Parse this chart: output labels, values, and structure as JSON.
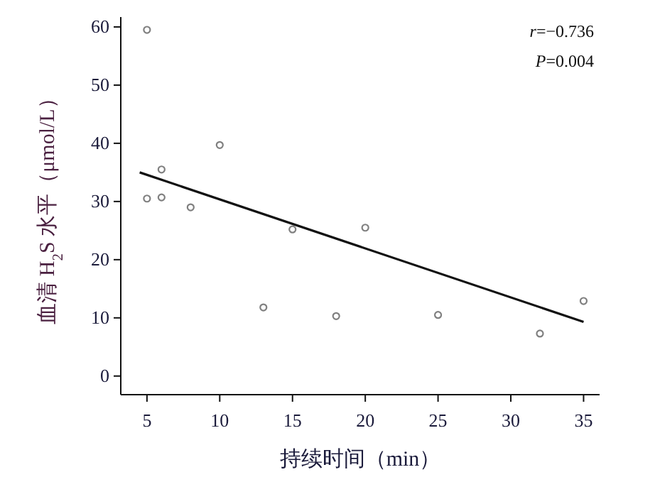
{
  "chart_data": {
    "type": "scatter",
    "xlabel": "持续时间（min）",
    "ylabel": "血清 H$_{2}$S 水平（μmol/L）",
    "xlim": [
      3.2,
      36.1
    ],
    "ylim": [
      -3.2,
      61.7
    ],
    "xticks": [
      5,
      10,
      15,
      20,
      25,
      30,
      35
    ],
    "yticks": [
      0,
      10,
      20,
      30,
      40,
      50,
      60
    ],
    "grid": false,
    "series": [
      {
        "marker": "circle",
        "color": "#808080",
        "x": [
          5,
          5,
          6,
          6,
          8,
          10,
          13,
          15,
          18,
          20,
          25,
          32,
          35
        ],
        "values": [
          59.5,
          30.5,
          35.5,
          30.7,
          29,
          39.7,
          11.8,
          25.2,
          10.3,
          25.5,
          10.5,
          7.3,
          12.9
        ]
      },
      {
        "type": "line",
        "color": "#111111",
        "x": [
          4.5,
          35
        ],
        "values": [
          35,
          9.3
        ]
      }
    ],
    "annotations": [
      "r=−0.736",
      "P=0.004"
    ]
  }
}
